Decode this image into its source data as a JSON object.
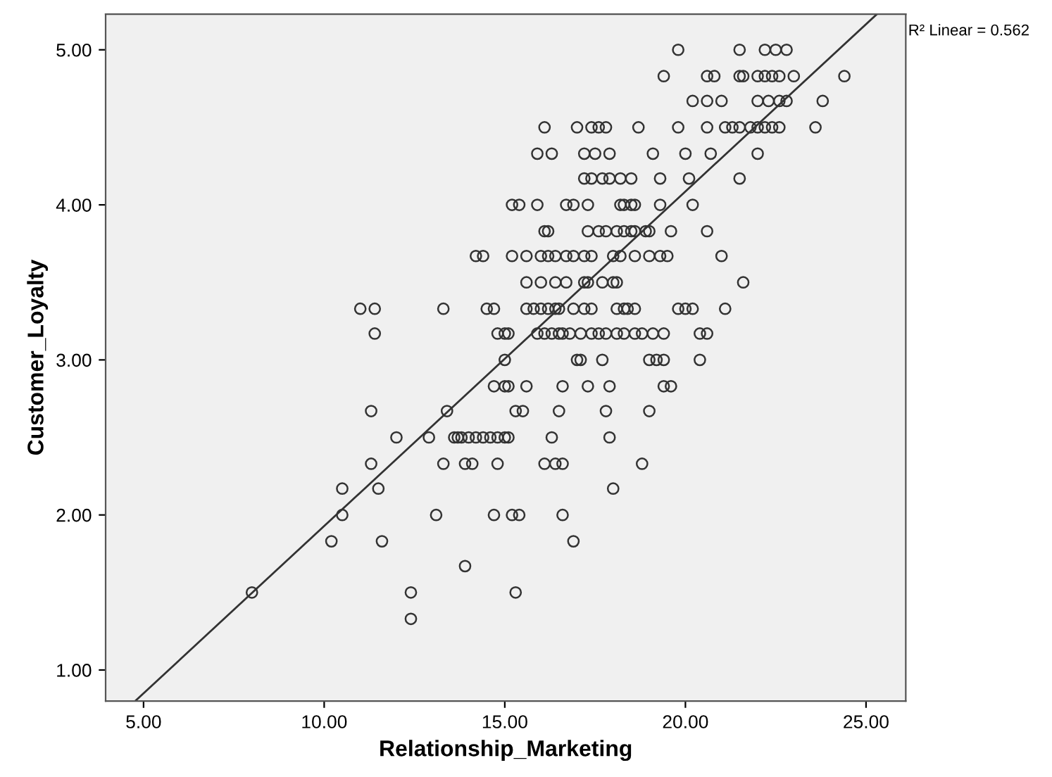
{
  "chart_data": {
    "type": "scatter",
    "xlabel": "Relationship_Marketing",
    "ylabel": "Customer_Loyalty",
    "annotations": [
      "R² Linear = 0.562"
    ],
    "xlim": [
      3.95,
      26.1
    ],
    "ylim": [
      0.8,
      5.23
    ],
    "xticks": [
      {
        "value": 5,
        "label": "5.00"
      },
      {
        "value": 10,
        "label": "10.00"
      },
      {
        "value": 15,
        "label": "15.00"
      },
      {
        "value": 20,
        "label": "20.00"
      },
      {
        "value": 25,
        "label": "25.00"
      }
    ],
    "yticks": [
      {
        "value": 1,
        "label": "1.00"
      },
      {
        "value": 2,
        "label": "2.00"
      },
      {
        "value": 3,
        "label": "3.00"
      },
      {
        "value": 4,
        "label": "4.00"
      },
      {
        "value": 5,
        "label": "5.00"
      }
    ],
    "grid": false,
    "marker": "circle",
    "series": [
      {
        "color": "#333333",
        "x": [
          19.8,
          21.5,
          22.2,
          22.5,
          22.8,
          19.4,
          20.6,
          20.8,
          21.5,
          21.6,
          22.0,
          22.2,
          22.4,
          22.6,
          23.0,
          24.4,
          20.2,
          20.6,
          21.0,
          22.0,
          22.3,
          22.6,
          22.8,
          23.8,
          16.1,
          17.0,
          17.4,
          17.6,
          17.8,
          18.7,
          19.8,
          20.6,
          21.1,
          21.3,
          21.5,
          21.8,
          22.0,
          22.2,
          22.4,
          22.6,
          23.6,
          15.9,
          16.3,
          17.2,
          17.5,
          17.9,
          19.1,
          20.0,
          20.7,
          22.0,
          17.2,
          17.4,
          17.7,
          17.9,
          18.2,
          18.5,
          19.3,
          20.1,
          21.5,
          15.2,
          15.4,
          15.9,
          16.7,
          16.9,
          17.3,
          18.2,
          18.3,
          18.5,
          18.6,
          19.3,
          20.2,
          16.1,
          16.2,
          17.3,
          17.6,
          17.8,
          18.1,
          18.3,
          18.5,
          18.6,
          18.9,
          19.0,
          19.6,
          20.6,
          14.2,
          14.4,
          15.2,
          15.6,
          16.0,
          16.2,
          16.4,
          16.7,
          16.9,
          17.2,
          17.4,
          18.0,
          18.2,
          18.6,
          19.0,
          19.3,
          19.5,
          21.0,
          15.6,
          16.0,
          16.4,
          16.7,
          17.2,
          17.3,
          17.7,
          18.0,
          18.1,
          21.6,
          11.0,
          11.4,
          13.3,
          14.5,
          14.7,
          15.6,
          15.8,
          16.0,
          16.2,
          16.4,
          16.5,
          16.9,
          17.2,
          17.4,
          18.1,
          18.3,
          18.4,
          18.6,
          19.8,
          20.0,
          20.2,
          21.1,
          11.4,
          14.8,
          15.0,
          15.1,
          15.9,
          16.1,
          16.3,
          16.5,
          16.6,
          16.8,
          17.1,
          17.4,
          17.6,
          17.8,
          18.1,
          18.3,
          18.6,
          18.8,
          19.1,
          19.4,
          20.4,
          20.6,
          15.0,
          17.0,
          17.1,
          17.7,
          19.0,
          19.2,
          19.4,
          20.4,
          14.7,
          15.0,
          15.1,
          15.6,
          16.6,
          17.3,
          17.9,
          19.4,
          19.6,
          11.3,
          13.4,
          15.3,
          15.5,
          16.5,
          17.8,
          19.0,
          12.0,
          12.9,
          13.6,
          13.7,
          13.8,
          14.0,
          14.2,
          14.4,
          14.6,
          14.8,
          15.0,
          15.1,
          16.3,
          17.9,
          11.3,
          13.3,
          13.9,
          14.1,
          14.8,
          16.1,
          16.4,
          16.6,
          18.8,
          10.5,
          11.5,
          18.0,
          10.5,
          13.1,
          14.7,
          15.2,
          15.4,
          16.6,
          10.2,
          11.6,
          16.9,
          13.9,
          8.0,
          12.4,
          15.3,
          12.4
        ],
        "values": [
          5.0,
          5.0,
          5.0,
          5.0,
          5.0,
          4.83,
          4.83,
          4.83,
          4.83,
          4.83,
          4.83,
          4.83,
          4.83,
          4.83,
          4.83,
          4.83,
          4.67,
          4.67,
          4.67,
          4.67,
          4.67,
          4.67,
          4.67,
          4.67,
          4.5,
          4.5,
          4.5,
          4.5,
          4.5,
          4.5,
          4.5,
          4.5,
          4.5,
          4.5,
          4.5,
          4.5,
          4.5,
          4.5,
          4.5,
          4.5,
          4.5,
          4.33,
          4.33,
          4.33,
          4.33,
          4.33,
          4.33,
          4.33,
          4.33,
          4.33,
          4.17,
          4.17,
          4.17,
          4.17,
          4.17,
          4.17,
          4.17,
          4.17,
          4.17,
          4.0,
          4.0,
          4.0,
          4.0,
          4.0,
          4.0,
          4.0,
          4.0,
          4.0,
          4.0,
          4.0,
          4.0,
          3.83,
          3.83,
          3.83,
          3.83,
          3.83,
          3.83,
          3.83,
          3.83,
          3.83,
          3.83,
          3.83,
          3.83,
          3.83,
          3.67,
          3.67,
          3.67,
          3.67,
          3.67,
          3.67,
          3.67,
          3.67,
          3.67,
          3.67,
          3.67,
          3.67,
          3.67,
          3.67,
          3.67,
          3.67,
          3.67,
          3.67,
          3.5,
          3.5,
          3.5,
          3.5,
          3.5,
          3.5,
          3.5,
          3.5,
          3.5,
          3.5,
          3.33,
          3.33,
          3.33,
          3.33,
          3.33,
          3.33,
          3.33,
          3.33,
          3.33,
          3.33,
          3.33,
          3.33,
          3.33,
          3.33,
          3.33,
          3.33,
          3.33,
          3.33,
          3.33,
          3.33,
          3.33,
          3.33,
          3.17,
          3.17,
          3.17,
          3.17,
          3.17,
          3.17,
          3.17,
          3.17,
          3.17,
          3.17,
          3.17,
          3.17,
          3.17,
          3.17,
          3.17,
          3.17,
          3.17,
          3.17,
          3.17,
          3.17,
          3.17,
          3.17,
          3.0,
          3.0,
          3.0,
          3.0,
          3.0,
          3.0,
          3.0,
          3.0,
          2.83,
          2.83,
          2.83,
          2.83,
          2.83,
          2.83,
          2.83,
          2.83,
          2.83,
          2.67,
          2.67,
          2.67,
          2.67,
          2.67,
          2.67,
          2.67,
          2.5,
          2.5,
          2.5,
          2.5,
          2.5,
          2.5,
          2.5,
          2.5,
          2.5,
          2.5,
          2.5,
          2.5,
          2.5,
          2.5,
          2.33,
          2.33,
          2.33,
          2.33,
          2.33,
          2.33,
          2.33,
          2.33,
          2.33,
          2.17,
          2.17,
          2.17,
          2.0,
          2.0,
          2.0,
          2.0,
          2.0,
          2.0,
          1.83,
          1.83,
          1.83,
          1.67,
          1.5,
          1.5,
          1.5,
          1.33
        ]
      },
      {
        "type": "line",
        "color": "#333333",
        "marker": "none",
        "x": [
          4.77,
          25.3
        ],
        "values": [
          0.8,
          5.23
        ]
      }
    ]
  }
}
